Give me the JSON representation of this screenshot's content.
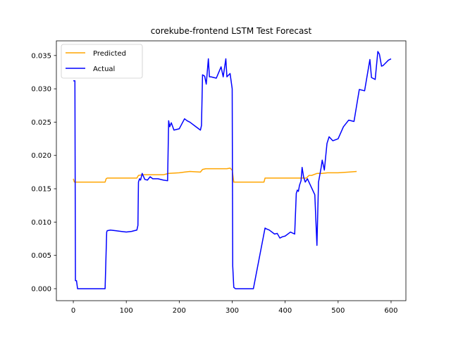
{
  "chart_data": {
    "type": "line",
    "title": "corekube-frontend LSTM Test Forecast",
    "xlabel": "",
    "ylabel": "",
    "xlim": [
      -32,
      628
    ],
    "ylim": [
      -0.0018,
      0.0372
    ],
    "xticks": [
      0,
      100,
      200,
      300,
      400,
      500,
      600
    ],
    "yticks": [
      0.0,
      0.005,
      0.01,
      0.015,
      0.02,
      0.025,
      0.03,
      0.035
    ],
    "xtick_labels": [
      "0",
      "100",
      "200",
      "300",
      "400",
      "500",
      "600"
    ],
    "ytick_labels": [
      "0.000",
      "0.005",
      "0.010",
      "0.015",
      "0.020",
      "0.025",
      "0.030",
      "0.035"
    ],
    "grid": false,
    "legend_position": "upper-left",
    "series": [
      {
        "name": "Predicted",
        "color": "#ffa500",
        "x": [
          0,
          2,
          10,
          40,
          60,
          62,
          64,
          75,
          100,
          120,
          123,
          130,
          150,
          170,
          175,
          180,
          200,
          210,
          220,
          240,
          244,
          250,
          260,
          270,
          280,
          290,
          296,
          300,
          303,
          320,
          360,
          362,
          380,
          420,
          440,
          445,
          450,
          460,
          470,
          480,
          500,
          520,
          535
        ],
        "values": [
          0.0165,
          0.016,
          0.016,
          0.016,
          0.016,
          0.0165,
          0.0166,
          0.0166,
          0.0166,
          0.0166,
          0.017,
          0.0171,
          0.0171,
          0.0171,
          0.0172,
          0.0173,
          0.0174,
          0.0175,
          0.0176,
          0.0175,
          0.0179,
          0.018,
          0.018,
          0.018,
          0.018,
          0.018,
          0.0181,
          0.0178,
          0.016,
          0.016,
          0.016,
          0.0166,
          0.0166,
          0.0166,
          0.0166,
          0.017,
          0.017,
          0.0173,
          0.0173,
          0.0174,
          0.0174,
          0.0175,
          0.0176
        ]
      },
      {
        "name": "Actual",
        "color": "#0000ff",
        "x": [
          0,
          3,
          4,
          6,
          8,
          60,
          63,
          64,
          70,
          80,
          90,
          100,
          110,
          115,
          120,
          122,
          123,
          125,
          127,
          130,
          135,
          140,
          145,
          150,
          160,
          170,
          178,
          180,
          182,
          185,
          190,
          200,
          210,
          215,
          220,
          230,
          240,
          242,
          244,
          248,
          251,
          255,
          257,
          260,
          270,
          279,
          283,
          288,
          290,
          296,
          300,
          301,
          303,
          306,
          310,
          320,
          340,
          362,
          364,
          370,
          380,
          385,
          390,
          395,
          400,
          410,
          418,
          421,
          423,
          425,
          427,
          430,
          432,
          435,
          438,
          442,
          456,
          460,
          463,
          468,
          470,
          474,
          479,
          483,
          490,
          500,
          510,
          520,
          530,
          540,
          550,
          560,
          563,
          570,
          575,
          578,
          582,
          585,
          590,
          595,
          600
        ],
        "values": [
          0.0312,
          0.0312,
          0.0012,
          0.0012,
          0.0,
          0.0,
          0.0085,
          0.0087,
          0.0088,
          0.0087,
          0.0086,
          0.0085,
          0.0086,
          0.0087,
          0.0088,
          0.0095,
          0.016,
          0.0165,
          0.0163,
          0.0173,
          0.0164,
          0.0163,
          0.0168,
          0.0165,
          0.0165,
          0.0163,
          0.0162,
          0.0252,
          0.0243,
          0.0249,
          0.0238,
          0.024,
          0.0255,
          0.0252,
          0.025,
          0.0244,
          0.0238,
          0.0245,
          0.0321,
          0.0319,
          0.0307,
          0.0345,
          0.0318,
          0.0318,
          0.0316,
          0.0333,
          0.0318,
          0.0345,
          0.0318,
          0.0323,
          0.03,
          0.0034,
          0.0002,
          0.0,
          0.0,
          0.0,
          0.0,
          0.0091,
          0.009,
          0.0088,
          0.0082,
          0.0083,
          0.0076,
          0.0078,
          0.0079,
          0.0085,
          0.0082,
          0.0143,
          0.0148,
          0.0146,
          0.0155,
          0.0162,
          0.0182,
          0.0167,
          0.016,
          0.0165,
          0.0141,
          0.0065,
          0.016,
          0.0182,
          0.0193,
          0.0178,
          0.0218,
          0.0228,
          0.0222,
          0.0225,
          0.0243,
          0.0253,
          0.0251,
          0.0299,
          0.0297,
          0.0344,
          0.0317,
          0.0314,
          0.0356,
          0.0352,
          0.0334,
          0.0335,
          0.0339,
          0.0343,
          0.0345
        ]
      }
    ]
  }
}
